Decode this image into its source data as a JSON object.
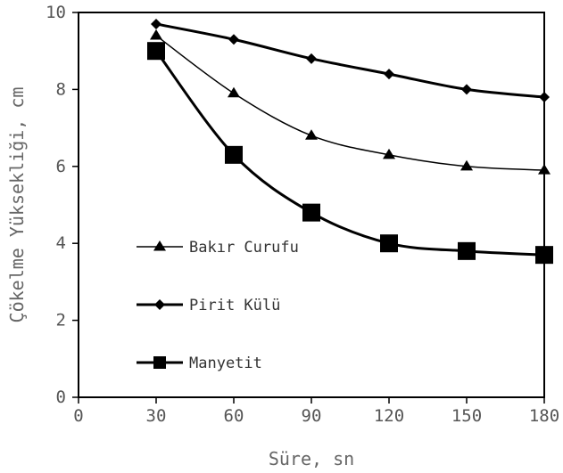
{
  "chart_data": {
    "type": "line",
    "title": "",
    "xlabel": "Süre, sn",
    "ylabel": "Çökelme Yüksekliği, cm",
    "xlim": [
      0,
      180
    ],
    "ylim": [
      0,
      10
    ],
    "xticks": [
      0,
      30,
      60,
      90,
      120,
      150,
      180
    ],
    "yticks": [
      0,
      2,
      4,
      6,
      8,
      10
    ],
    "grid": false,
    "legend_position": "inside-left",
    "x": [
      30,
      60,
      90,
      120,
      150,
      180
    ],
    "series": [
      {
        "name": "Bakır Curufu",
        "marker": "triangle",
        "line_weight": "thin",
        "values": [
          9.4,
          7.9,
          6.8,
          6.3,
          6.0,
          5.9
        ]
      },
      {
        "name": "Pirit Külü",
        "marker": "diamond",
        "line_weight": "bold",
        "values": [
          9.7,
          9.3,
          8.8,
          8.4,
          8.0,
          7.8
        ]
      },
      {
        "name": "Manyetit",
        "marker": "square",
        "line_weight": "bold",
        "values": [
          9.0,
          6.3,
          4.8,
          4.0,
          3.8,
          3.7
        ]
      }
    ],
    "colors": {
      "line": "#000000",
      "axis": "#000000",
      "text": "#555555"
    }
  }
}
